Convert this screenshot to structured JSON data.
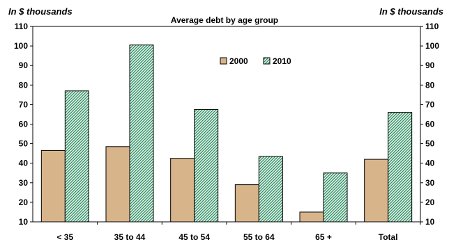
{
  "chart_data": {
    "type": "bar",
    "title": "Average debt by age group",
    "y_unit_label_left": "In $ thousands",
    "y_unit_label_right": "In $ thousands",
    "xlabel": "",
    "ylabel": "",
    "categories": [
      "< 35",
      "35 to 44",
      "45 to 54",
      "55 to 64",
      "65 +",
      "Total"
    ],
    "series": [
      {
        "name": "2000",
        "values": [
          46.5,
          48.5,
          42.5,
          29,
          15,
          42
        ],
        "color": "#d8b48b",
        "pattern": "solid"
      },
      {
        "name": "2010",
        "values": [
          77,
          100.5,
          67.5,
          43.5,
          35,
          66
        ],
        "color": "#2f8f66",
        "pattern": "diagonal-hatch"
      }
    ],
    "ylim": [
      10,
      110
    ],
    "yticks": [
      10,
      20,
      30,
      40,
      50,
      60,
      70,
      80,
      90,
      100,
      110
    ],
    "grid": false,
    "legend_position": "top-center"
  }
}
